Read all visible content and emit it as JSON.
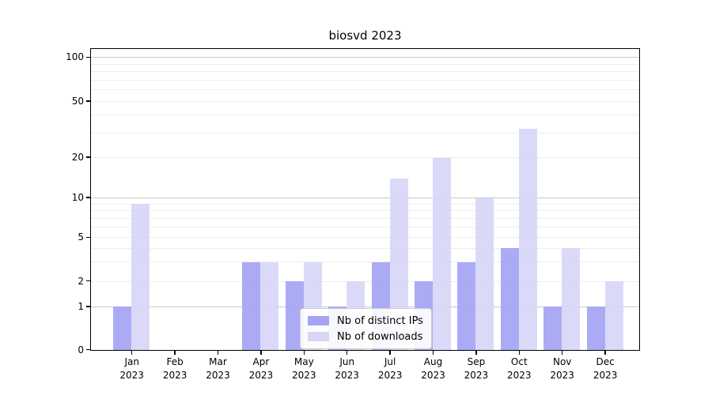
{
  "chart_data": {
    "type": "bar",
    "title": "biosvd 2023",
    "xlabel": "",
    "ylabel": "",
    "categories": [
      "Jan 2023",
      "Feb 2023",
      "Mar 2023",
      "Apr 2023",
      "May 2023",
      "Jun 2023",
      "Jul 2023",
      "Aug 2023",
      "Sep 2023",
      "Oct 2023",
      "Nov 2023",
      "Dec 2023"
    ],
    "series": [
      {
        "name": "Nb of distinct IPs",
        "color": "#a4a4f4",
        "values": [
          1,
          0,
          0,
          3,
          2,
          1,
          3,
          2,
          3,
          4,
          1,
          1
        ]
      },
      {
        "name": "Nb of downloads",
        "color": "#d7d7f7",
        "values": [
          9,
          0,
          0,
          3,
          3,
          2,
          14,
          20,
          10,
          32,
          4,
          2
        ]
      }
    ],
    "yticks": [
      0,
      1,
      2,
      5,
      10,
      20,
      50,
      100
    ],
    "major_gridlines": [
      1,
      10,
      100
    ],
    "minor_gridlines": [
      2,
      3,
      4,
      5,
      6,
      7,
      8,
      9,
      20,
      30,
      40,
      50,
      60,
      70,
      80,
      90
    ],
    "ylim": [
      0,
      113
    ],
    "grid": "on",
    "legend_position": "lower center",
    "y_scale": {
      "type": "log-like",
      "anchors": [
        [
          0,
          0
        ],
        [
          1,
          0.1436
        ],
        [
          2,
          0.2285
        ],
        [
          5,
          0.3742
        ],
        [
          10,
          0.5065
        ],
        [
          20,
          0.6405
        ],
        [
          50,
          0.8277
        ],
        [
          100,
          0.9739
        ]
      ]
    }
  },
  "colors": {
    "bar_distinct_ips": "#a4a4f4",
    "bar_downloads": "#d7d7f7",
    "grid_major": "#c9c9c9",
    "grid_minor": "#ededed",
    "axis": "#000000",
    "background": "#ffffff"
  }
}
